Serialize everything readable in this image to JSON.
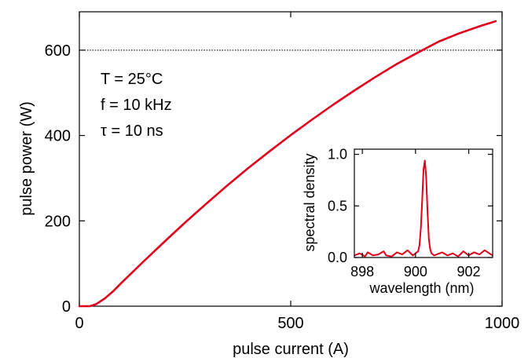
{
  "chart_data": [
    {
      "type": "line",
      "xlabel": "pulse current (A)",
      "ylabel": "pulse power (W)",
      "xlim": [
        0,
        1000
      ],
      "ylim": [
        0,
        690
      ],
      "xticks": [
        0,
        500,
        1000
      ],
      "yticks": [
        0,
        200,
        400,
        600
      ],
      "grid": false,
      "reference_line": {
        "y": 600,
        "style": "dotted"
      },
      "annotations": [
        "T = 25°C",
        "f = 10 kHz",
        "τ = 10 ns"
      ],
      "series": [
        {
          "color": "#e0001b",
          "x": [
            0,
            25,
            40,
            60,
            80,
            100,
            150,
            200,
            250,
            300,
            350,
            400,
            450,
            500,
            550,
            600,
            650,
            700,
            750,
            800,
            850,
            900,
            950,
            985
          ],
          "y": [
            0,
            0,
            5,
            18,
            35,
            55,
            103,
            150,
            196,
            240,
            283,
            324,
            363,
            401,
            437,
            472,
            505,
            537,
            567,
            594,
            620,
            640,
            657,
            668
          ]
        }
      ]
    },
    {
      "type": "line",
      "xlabel": "wavelength (nm)",
      "ylabel": "spectral density",
      "xlim": [
        897.7,
        902.9
      ],
      "ylim": [
        0,
        1.05
      ],
      "xticks": [
        898,
        900,
        902
      ],
      "yticks": [
        0.0,
        0.5,
        1.0
      ],
      "ytick_labels": [
        "0.0",
        "0.5",
        "1.0"
      ],
      "grid": false,
      "series": [
        {
          "color": "#e0001b",
          "x": [
            897.7,
            897.9,
            898.1,
            898.2,
            898.4,
            898.6,
            898.8,
            898.9,
            899.1,
            899.3,
            899.5,
            899.7,
            899.9,
            900.0,
            900.1,
            900.15,
            900.2,
            900.25,
            900.3,
            900.35,
            900.4,
            900.45,
            900.5,
            900.55,
            900.6,
            900.7,
            900.8,
            901.0,
            901.2,
            901.4,
            901.6,
            901.8,
            902.0,
            902.2,
            902.4,
            902.6,
            902.9
          ],
          "y": [
            0.02,
            0.04,
            0.01,
            0.05,
            0.02,
            0.03,
            0.06,
            0.02,
            0.01,
            0.05,
            0.03,
            0.07,
            0.02,
            0.04,
            0.06,
            0.12,
            0.28,
            0.55,
            0.85,
            0.94,
            0.78,
            0.45,
            0.18,
            0.08,
            0.04,
            0.02,
            0.03,
            0.05,
            0.02,
            0.04,
            0.01,
            0.06,
            0.02,
            0.05,
            0.03,
            0.07,
            0.02
          ]
        }
      ]
    }
  ]
}
